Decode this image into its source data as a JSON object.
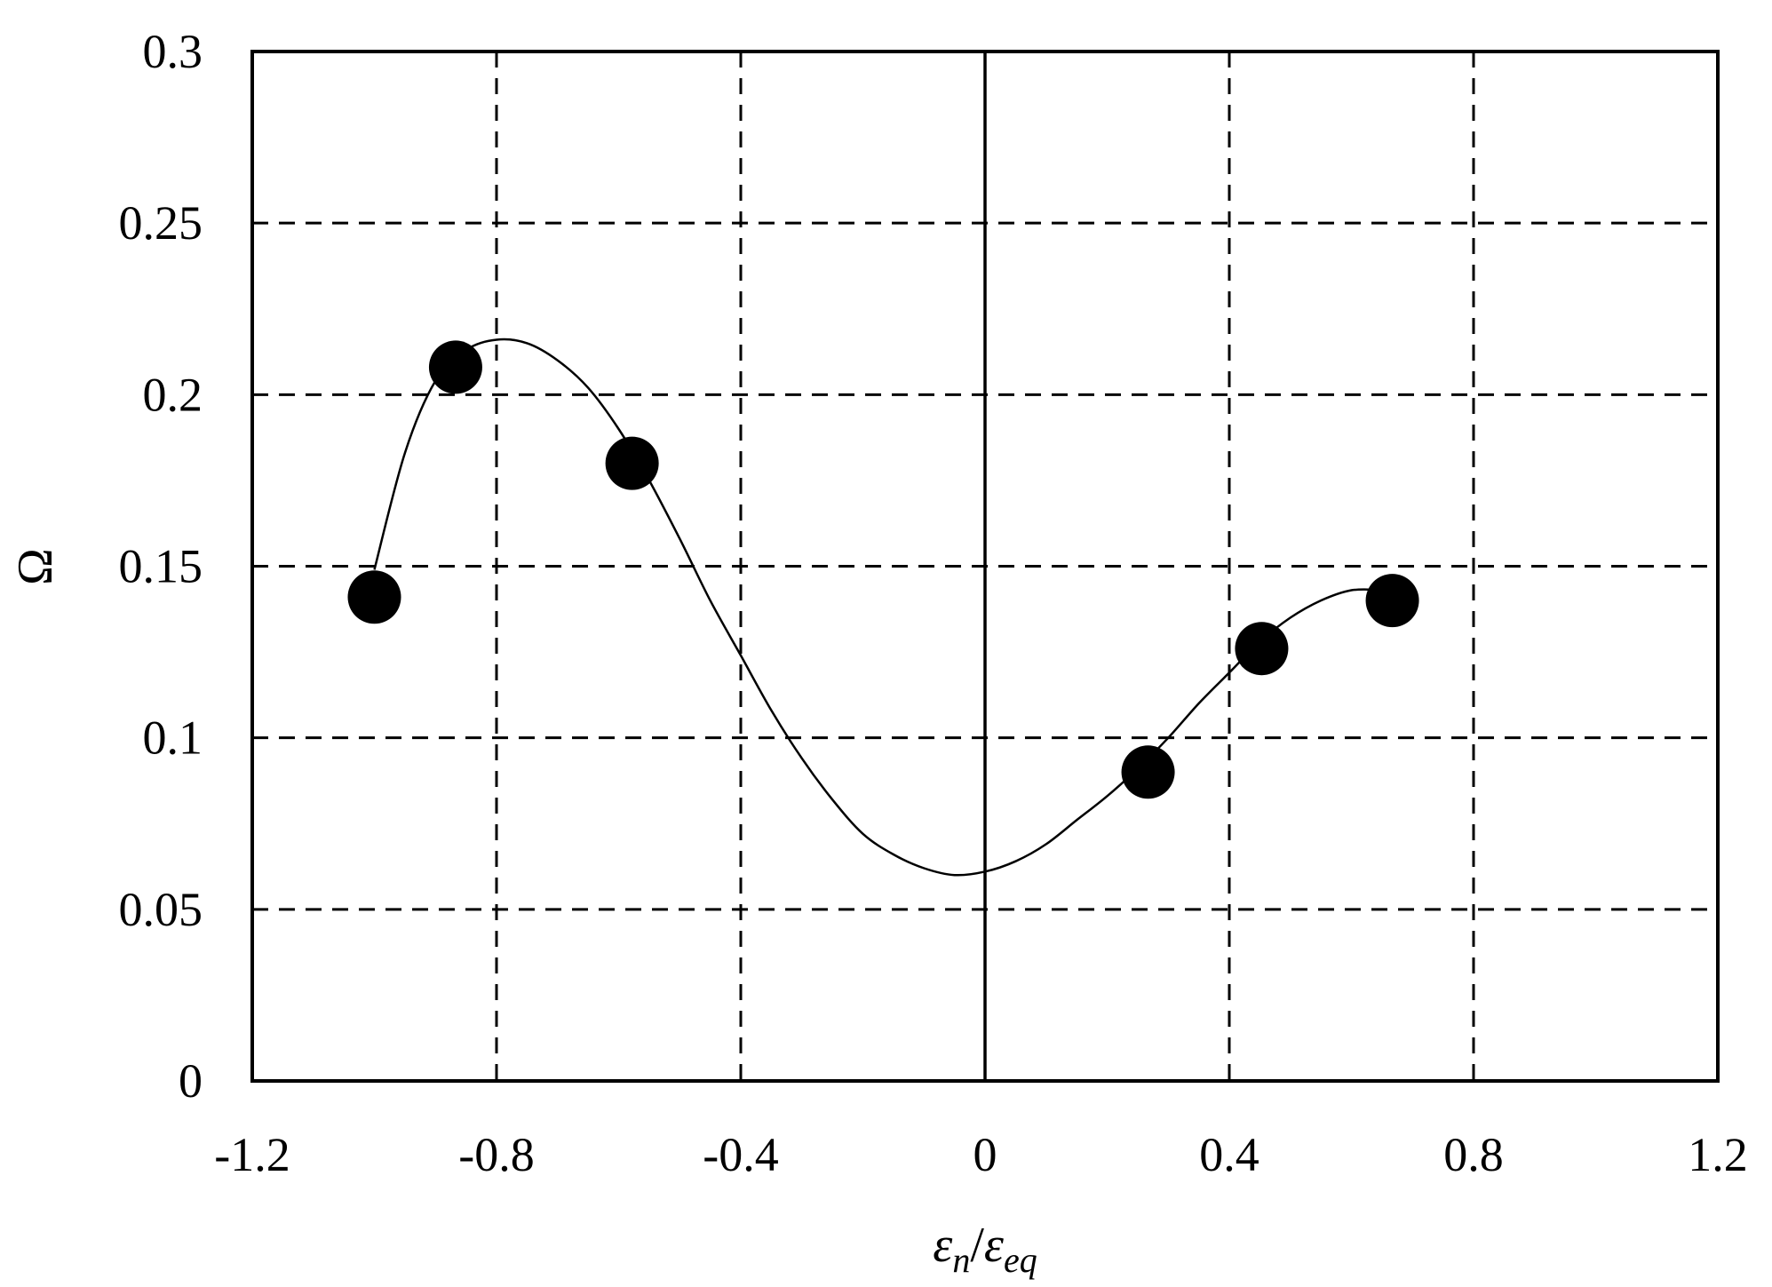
{
  "chart_data": {
    "type": "scatter",
    "title": "",
    "xlabel": {
      "numerator_symbol": "ε",
      "numerator_subscript": "n",
      "separator": "/",
      "denominator_symbol": "ε",
      "denominator_subscript": "eq"
    },
    "ylabel": "Ω",
    "xlim": [
      -1.2,
      1.2
    ],
    "ylim": [
      0,
      0.3
    ],
    "x_ticks": [
      "-1.2",
      "-0.8",
      "-0.4",
      "0",
      "0.4",
      "0.8",
      "1.2"
    ],
    "y_ticks": [
      "0",
      "0.05",
      "0.1",
      "0.15",
      "0.2",
      "0.25",
      "0.3"
    ],
    "grid": "dashed",
    "series": [
      {
        "kind": "points",
        "marker": "filled-circle",
        "color": "#000000",
        "x": [
          -1.0,
          -0.867,
          -0.578,
          0.267,
          0.453,
          0.667
        ],
        "y": [
          0.141,
          0.208,
          0.18,
          0.09,
          0.126,
          0.14
        ]
      },
      {
        "kind": "fitted-curve",
        "color": "#000000",
        "x": [
          -1.0,
          -0.95,
          -0.9,
          -0.85,
          -0.8,
          -0.75,
          -0.7,
          -0.65,
          -0.6,
          -0.55,
          -0.5,
          -0.45,
          -0.4,
          -0.35,
          -0.3,
          -0.25,
          -0.2,
          -0.15,
          -0.1,
          -0.05,
          0.0,
          0.05,
          0.1,
          0.15,
          0.2,
          0.25,
          0.3,
          0.35,
          0.4,
          0.45,
          0.5,
          0.55,
          0.6,
          0.65,
          0.667
        ],
        "y": [
          0.149,
          0.183,
          0.204,
          0.213,
          0.216,
          0.215,
          0.21,
          0.202,
          0.19,
          0.175,
          0.158,
          0.14,
          0.124,
          0.108,
          0.094,
          0.082,
          0.072,
          0.066,
          0.062,
          0.06,
          0.061,
          0.064,
          0.069,
          0.076,
          0.083,
          0.091,
          0.1,
          0.11,
          0.119,
          0.128,
          0.135,
          0.14,
          0.143,
          0.143,
          0.142
        ]
      }
    ]
  }
}
